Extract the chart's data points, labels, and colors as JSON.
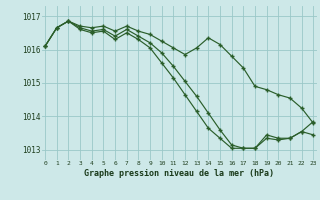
{
  "xlabel": "Graphe pression niveau de la mer (hPa)",
  "xlim": [
    -0.3,
    23.3
  ],
  "ylim": [
    1012.7,
    1017.3
  ],
  "yticks": [
    1013,
    1014,
    1015,
    1016,
    1017
  ],
  "xticks": [
    0,
    1,
    2,
    3,
    4,
    5,
    6,
    7,
    8,
    9,
    10,
    11,
    12,
    13,
    14,
    15,
    16,
    17,
    18,
    19,
    20,
    21,
    22,
    23
  ],
  "background_color": "#cde8e8",
  "grid_color": "#9ac8c8",
  "line_color": "#2a5e2a",
  "line1_x": [
    0,
    1,
    2,
    3,
    4,
    5,
    6,
    7,
    8,
    9,
    10,
    11,
    12,
    13,
    14,
    15,
    16,
    17,
    18,
    19,
    20,
    21,
    22,
    23
  ],
  "line1_y": [
    1016.1,
    1016.65,
    1016.85,
    1016.7,
    1016.65,
    1016.7,
    1016.55,
    1016.7,
    1016.55,
    1016.45,
    1016.25,
    1016.05,
    1015.85,
    1016.05,
    1016.35,
    1016.15,
    1015.8,
    1015.45,
    1014.9,
    1014.8,
    1014.65,
    1014.55,
    1014.25,
    1013.8
  ],
  "line2_x": [
    0,
    1,
    2,
    3,
    4,
    5,
    6,
    7,
    8,
    9,
    10,
    11,
    12,
    13,
    14,
    15,
    16,
    17,
    18,
    19,
    20,
    21,
    22,
    23
  ],
  "line2_y": [
    1016.1,
    1016.65,
    1016.85,
    1016.65,
    1016.55,
    1016.6,
    1016.4,
    1016.6,
    1016.4,
    1016.2,
    1015.9,
    1015.5,
    1015.05,
    1014.6,
    1014.1,
    1013.6,
    1013.15,
    1013.05,
    1013.05,
    1013.45,
    1013.35,
    1013.35,
    1013.55,
    1013.45
  ],
  "line3_x": [
    0,
    1,
    2,
    3,
    4,
    5,
    6,
    7,
    8,
    9,
    10,
    11,
    12,
    13,
    14,
    15,
    16,
    17,
    18,
    19,
    20,
    21,
    22,
    23
  ],
  "line3_y": [
    1016.1,
    1016.65,
    1016.85,
    1016.6,
    1016.5,
    1016.55,
    1016.3,
    1016.5,
    1016.3,
    1016.05,
    1015.6,
    1015.15,
    1014.65,
    1014.15,
    1013.65,
    1013.35,
    1013.05,
    1013.05,
    1013.05,
    1013.35,
    1013.3,
    1013.35,
    1013.55,
    1013.85
  ]
}
